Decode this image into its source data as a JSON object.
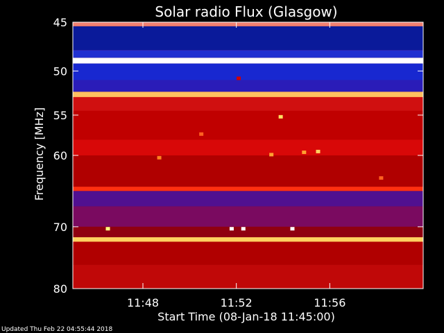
{
  "chart_data": {
    "type": "heatmap",
    "title": "Solar radio Flux (Glasgow)",
    "xlabel": "Start Time (08-Jan-18 11:45:00)",
    "ylabel": "Frequency [MHz]",
    "x_tick_labels": [
      "11:48",
      "11:52",
      "11:56"
    ],
    "x_ticks_minutes_after_start": [
      3,
      7,
      11
    ],
    "x_range_minutes_after_start": [
      0,
      15
    ],
    "y_scale": "log",
    "y_ticks": [
      45,
      50,
      55,
      60,
      70,
      80
    ],
    "y_range": [
      45,
      80
    ],
    "colormap": [
      "#000080",
      "#2020e0",
      "#6010a0",
      "#a00000",
      "#e00000",
      "#ff6000",
      "#ffd040",
      "#ffffff"
    ],
    "bands": [
      {
        "from": 45.0,
        "to": 45.4,
        "color": "#f08070"
      },
      {
        "from": 45.4,
        "to": 47.8,
        "color": "#0a1a9a"
      },
      {
        "from": 47.8,
        "to": 48.6,
        "color": "#2030d0"
      },
      {
        "from": 48.6,
        "to": 49.2,
        "color": "#ffffff"
      },
      {
        "from": 49.2,
        "to": 51.0,
        "color": "#1828d0"
      },
      {
        "from": 51.0,
        "to": 52.3,
        "color": "#2a1cb8"
      },
      {
        "from": 52.3,
        "to": 52.9,
        "color": "#ffc060"
      },
      {
        "from": 52.9,
        "to": 54.5,
        "color": "#d01010"
      },
      {
        "from": 54.5,
        "to": 58.0,
        "color": "#c00000"
      },
      {
        "from": 58.0,
        "to": 60.0,
        "color": "#d80808"
      },
      {
        "from": 60.0,
        "to": 64.2,
        "color": "#b00000"
      },
      {
        "from": 64.2,
        "to": 64.8,
        "color": "#ff3010"
      },
      {
        "from": 64.8,
        "to": 67.0,
        "color": "#501090"
      },
      {
        "from": 67.0,
        "to": 70.0,
        "color": "#7a0a60"
      },
      {
        "from": 70.0,
        "to": 71.6,
        "color": "#900010"
      },
      {
        "from": 71.6,
        "to": 72.3,
        "color": "#ffd060"
      },
      {
        "from": 72.3,
        "to": 76.0,
        "color": "#b00000"
      },
      {
        "from": 76.0,
        "to": 80.0,
        "color": "#c00808"
      }
    ],
    "features": [
      {
        "t": 8.9,
        "f": 55.2,
        "color": "#ffe060"
      },
      {
        "t": 8.5,
        "f": 59.9,
        "color": "#ffa030"
      },
      {
        "t": 9.9,
        "f": 59.6,
        "color": "#ffa030"
      },
      {
        "t": 10.5,
        "f": 59.5,
        "color": "#ffd060"
      },
      {
        "t": 3.7,
        "f": 60.3,
        "color": "#ff8020"
      },
      {
        "t": 5.5,
        "f": 57.3,
        "color": "#ff6020"
      },
      {
        "t": 1.5,
        "f": 70.3,
        "color": "#ffff80"
      },
      {
        "t": 6.8,
        "f": 70.3,
        "color": "#ffffff"
      },
      {
        "t": 7.3,
        "f": 70.3,
        "color": "#ffffff"
      },
      {
        "t": 9.4,
        "f": 70.3,
        "color": "#ffffff"
      },
      {
        "t": 7.1,
        "f": 50.8,
        "color": "#d00000"
      },
      {
        "t": 13.2,
        "f": 63.0,
        "color": "#ff6020"
      }
    ]
  },
  "footer": {
    "updated": "Updated Thu Feb 22 04:55:44 2018"
  }
}
